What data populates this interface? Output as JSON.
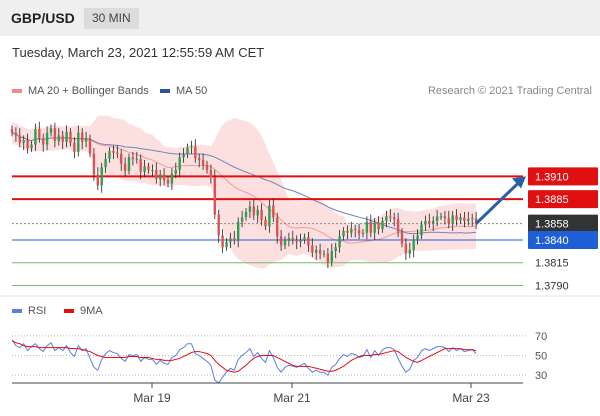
{
  "header": {
    "symbol": "GBP/USD",
    "timeframe": "30 MIN"
  },
  "datetime": "Tuesday, March 23, 2021 12:55:59 AM CET",
  "legend": {
    "ma20": {
      "label": "MA 20 + Bollinger Bands",
      "color": "#f08a8a"
    },
    "ma50": {
      "label": "MA 50",
      "color": "#2a5599"
    }
  },
  "credit": "Research © 2021 Trading Central",
  "rsi_legend": {
    "rsi": {
      "label": "RSI",
      "color": "#5b7fe0"
    },
    "ma9": {
      "label": "9MA",
      "color": "#e01010"
    }
  },
  "colors": {
    "up": "#2e9e4f",
    "down": "#e05050",
    "resistance": "#e01010",
    "current": "#333333",
    "support_blue": "#1f5fd6",
    "support_green": "#6cbf6c",
    "band": "#fbd5d5",
    "arrow": "#2a5ea8"
  },
  "chart_data": [
    {
      "type": "candlestick",
      "title": "GBP/USD",
      "x_ticks": [
        "Mar 19",
        "Mar 21",
        "Mar 23"
      ],
      "ylim": [
        1.3774,
        1.3994
      ],
      "bars": 120,
      "series": [
        {
          "name": "MA 20 + Bollinger Bands",
          "start": 1.3945,
          "end": 1.3852
        },
        {
          "name": "MA 50",
          "start": 1.3925,
          "end": 1.3849
        }
      ],
      "levels": [
        {
          "value": 1.391,
          "label": "1.3910",
          "kind": "resistance"
        },
        {
          "value": 1.3885,
          "label": "1.3885",
          "kind": "resistance"
        },
        {
          "value": 1.3858,
          "label": "1.3858",
          "kind": "current"
        },
        {
          "value": 1.384,
          "label": "1.3840",
          "kind": "support_blue"
        },
        {
          "value": 1.3815,
          "label": "1.3815",
          "kind": "support_green"
        },
        {
          "value": 1.379,
          "label": "1.3790",
          "kind": "support_green"
        }
      ],
      "closes": [
        1.3958,
        1.3955,
        1.3947,
        1.395,
        1.3941,
        1.3945,
        1.3962,
        1.3952,
        1.3945,
        1.3958,
        1.3963,
        1.3949,
        1.3955,
        1.3948,
        1.3959,
        1.3947,
        1.3937,
        1.3958,
        1.3948,
        1.3952,
        1.3935,
        1.3912,
        1.39,
        1.392,
        1.3929,
        1.3938,
        1.3936,
        1.3935,
        1.3924,
        1.3916,
        1.3931,
        1.3929,
        1.3929,
        1.3915,
        1.3921,
        1.3917,
        1.3917,
        1.3907,
        1.3912,
        1.3906,
        1.3902,
        1.3913,
        1.3917,
        1.3931,
        1.3934,
        1.3942,
        1.3943,
        1.393,
        1.3928,
        1.3923,
        1.3917,
        1.3909,
        1.3868,
        1.3845,
        1.3832,
        1.3838,
        1.3842,
        1.384,
        1.386,
        1.3865,
        1.3871,
        1.3877,
        1.3867,
        1.3873,
        1.3862,
        1.3855,
        1.3878,
        1.3865,
        1.3844,
        1.3834,
        1.384,
        1.3842,
        1.384,
        1.3838,
        1.384,
        1.3843,
        1.3834,
        1.3826,
        1.3829,
        1.3825,
        1.3825,
        1.3816,
        1.3828,
        1.3832,
        1.3844,
        1.385,
        1.3848,
        1.3852,
        1.3851,
        1.3847,
        1.3848,
        1.386,
        1.3848,
        1.3859,
        1.3852,
        1.3861,
        1.3866,
        1.3865,
        1.3863,
        1.3849,
        1.3836,
        1.3825,
        1.3829,
        1.3841,
        1.3845,
        1.3857,
        1.3861,
        1.3858,
        1.3861,
        1.3866,
        1.3866,
        1.3864,
        1.3858,
        1.3867,
        1.3862,
        1.3865,
        1.3861,
        1.3863,
        1.3864,
        1.3858
      ]
    },
    {
      "type": "line",
      "title": "RSI",
      "ylim": [
        20,
        80
      ],
      "y_ticks": [
        70,
        50,
        30
      ],
      "series": [
        {
          "name": "RSI",
          "values": [
            66,
            60,
            58,
            62,
            55,
            59,
            62,
            57,
            54,
            60,
            63,
            55,
            58,
            55,
            60,
            53,
            49,
            60,
            55,
            57,
            47,
            38,
            35,
            46,
            52,
            55,
            53,
            52,
            47,
            44,
            51,
            50,
            51,
            44,
            48,
            46,
            46,
            41,
            45,
            42,
            41,
            48,
            50,
            56,
            58,
            62,
            62,
            52,
            50,
            47,
            44,
            40,
            25,
            22,
            28,
            33,
            37,
            35,
            46,
            50,
            53,
            57,
            49,
            53,
            47,
            43,
            55,
            48,
            38,
            33,
            38,
            40,
            39,
            38,
            40,
            42,
            37,
            33,
            35,
            33,
            33,
            30,
            38,
            41,
            47,
            51,
            49,
            52,
            51,
            48,
            49,
            56,
            48,
            55,
            50,
            56,
            58,
            58,
            56,
            47,
            39,
            33,
            36,
            45,
            48,
            55,
            57,
            55,
            57,
            59,
            59,
            58,
            54,
            58,
            55,
            57,
            54,
            55,
            56,
            52
          ]
        },
        {
          "name": "9MA",
          "values": [
            65,
            63,
            62,
            60,
            59,
            59,
            59,
            58,
            58,
            58,
            58,
            58,
            58,
            58,
            58,
            57,
            57,
            57,
            56,
            55,
            54,
            52,
            50,
            49,
            48,
            48,
            48,
            48,
            48,
            48,
            49,
            49,
            49,
            48,
            48,
            48,
            47,
            46,
            46,
            45,
            45,
            45,
            46,
            47,
            49,
            51,
            53,
            54,
            54,
            53,
            52,
            50,
            45,
            41,
            38,
            35,
            34,
            33,
            34,
            37,
            40,
            44,
            47,
            49,
            50,
            50,
            50,
            50,
            48,
            46,
            44,
            42,
            40,
            39,
            39,
            39,
            39,
            38,
            37,
            36,
            35,
            34,
            34,
            35,
            37,
            39,
            42,
            45,
            47,
            49,
            50,
            50,
            50,
            51,
            51,
            52,
            53,
            54,
            55,
            54,
            51,
            48,
            46,
            44,
            43,
            45,
            47,
            49,
            51,
            53,
            55,
            57,
            57,
            57,
            57,
            57,
            56,
            56,
            56,
            55
          ]
        }
      ]
    }
  ]
}
